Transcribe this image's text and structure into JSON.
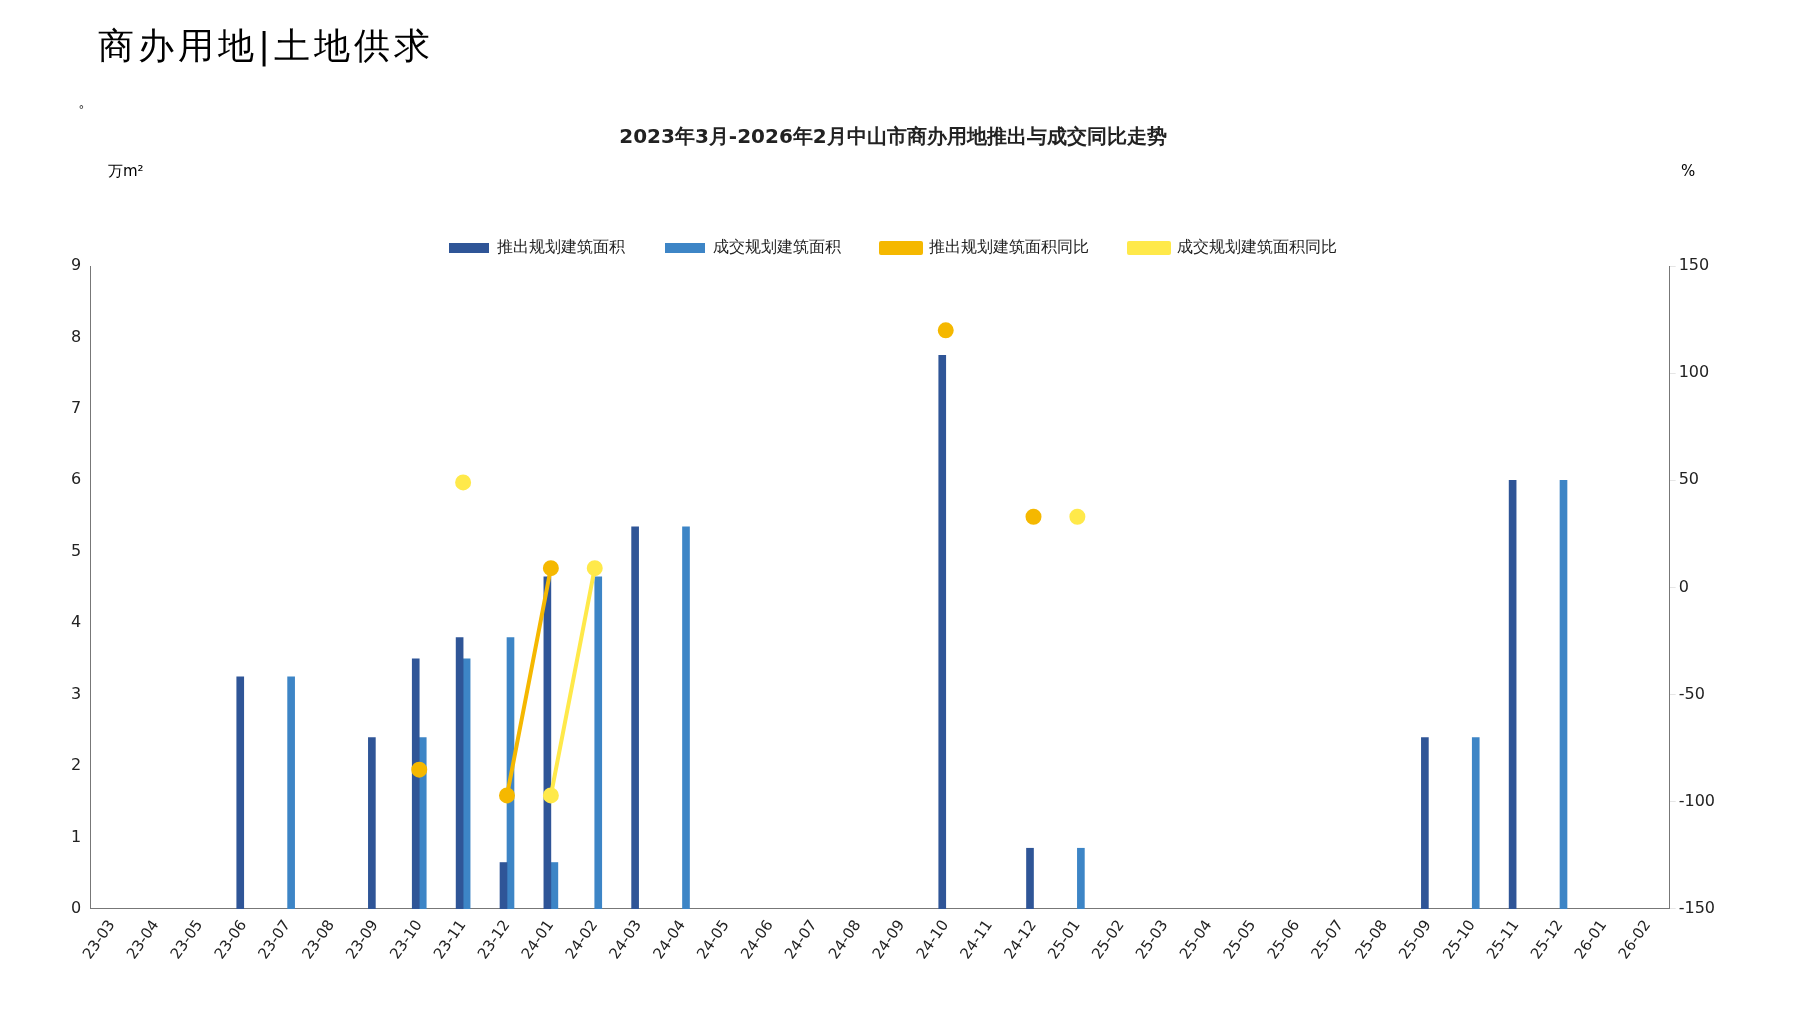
{
  "chart_data": {
    "type": "bar",
    "title": "2023年3月-2026年2月中山市商办用地推出与成交同比走势",
    "ylabel": "万m²",
    "y2label": "%",
    "annotations": [
      "商办用地|土地供求",
      "。"
    ],
    "categories": [
      "23-03",
      "23-04",
      "23-05",
      "23-06",
      "23-07",
      "23-08",
      "23-09",
      "23-10",
      "23-11",
      "23-12",
      "24-01",
      "24-02",
      "24-03",
      "24-04",
      "24-05",
      "24-06",
      "24-07",
      "24-08",
      "24-09",
      "24-10",
      "24-11",
      "24-12",
      "25-01",
      "25-02",
      "25-03",
      "25-04",
      "25-05",
      "25-06",
      "25-07",
      "25-08",
      "25-09",
      "25-10",
      "25-11",
      "25-12",
      "26-01",
      "26-02"
    ],
    "series": [
      {
        "name": "推出规划建筑面积",
        "color": "#2f5597",
        "values": [
          null,
          null,
          null,
          3.25,
          null,
          null,
          2.4,
          3.5,
          3.8,
          0.65,
          4.65,
          null,
          5.35,
          null,
          null,
          null,
          null,
          null,
          null,
          7.75,
          null,
          0.85,
          null,
          null,
          null,
          null,
          null,
          null,
          null,
          null,
          2.4,
          null,
          6.0,
          null,
          null,
          null
        ]
      },
      {
        "name": "成交规划建筑面积",
        "color": "#3d85c6",
        "values": [
          null,
          null,
          null,
          null,
          3.25,
          null,
          null,
          2.4,
          3.5,
          3.8,
          0.65,
          4.65,
          null,
          5.35,
          null,
          null,
          null,
          null,
          null,
          null,
          null,
          null,
          0.85,
          null,
          null,
          null,
          null,
          null,
          null,
          null,
          null,
          2.4,
          null,
          6.0,
          null,
          null
        ]
      },
      {
        "name": "推出规划建筑面积同比",
        "type": "line",
        "axis": "y2",
        "color": "#f5b800",
        "values": [
          null,
          null,
          null,
          null,
          null,
          null,
          null,
          -85,
          null,
          -97,
          9,
          null,
          null,
          null,
          null,
          null,
          null,
          null,
          null,
          120,
          null,
          33,
          null,
          null,
          null,
          null,
          null,
          null,
          null,
          null,
          null,
          null,
          null,
          null,
          null,
          null
        ]
      },
      {
        "name": "成交规划建筑面积同比",
        "type": "line",
        "axis": "y2",
        "color": "#ffe94a",
        "values": [
          null,
          null,
          null,
          null,
          null,
          null,
          null,
          null,
          49,
          null,
          -97,
          9,
          null,
          null,
          null,
          null,
          null,
          null,
          null,
          null,
          null,
          null,
          33,
          null,
          null,
          null,
          null,
          null,
          null,
          null,
          null,
          null,
          null,
          null,
          null,
          null
        ]
      }
    ],
    "ylim": [
      0,
      9
    ],
    "yticks": [
      0,
      1,
      2,
      3,
      4,
      5,
      6,
      7,
      8,
      9
    ],
    "y2lim": [
      -150,
      150
    ],
    "y2ticks": [
      -150,
      -100,
      -50,
      0,
      50,
      100,
      150
    ],
    "grid": false,
    "legend": "top",
    "marker": "circle",
    "line_style": "solid"
  }
}
